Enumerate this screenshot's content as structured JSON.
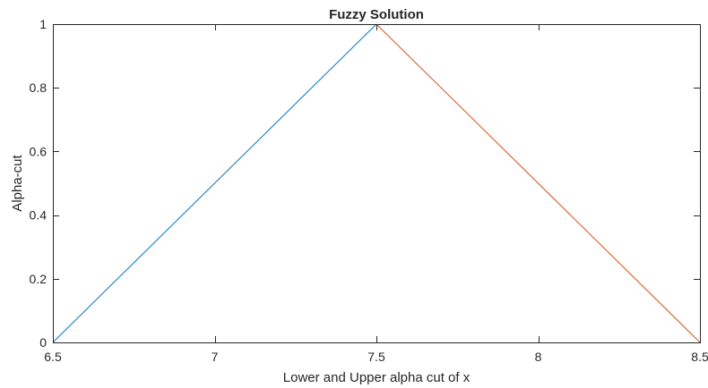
{
  "chart_data": {
    "type": "line",
    "title": "Fuzzy Solution",
    "xlabel": "Lower and Upper alpha cut of x",
    "ylabel": "Alpha-cut",
    "xlim": [
      6.5,
      8.5
    ],
    "ylim": [
      0,
      1
    ],
    "xticks": [
      "6.5",
      "7",
      "7.5",
      "8",
      "8.5"
    ],
    "yticks": [
      "0",
      "0.2",
      "0.4",
      "0.6",
      "0.8",
      "1"
    ],
    "grid": false,
    "series": [
      {
        "color": "#0072BD",
        "x": [
          6.5,
          7.5
        ],
        "y": [
          0,
          1
        ]
      },
      {
        "color": "#D95319",
        "x": [
          7.5,
          8.5
        ],
        "y": [
          1,
          0
        ]
      }
    ]
  }
}
